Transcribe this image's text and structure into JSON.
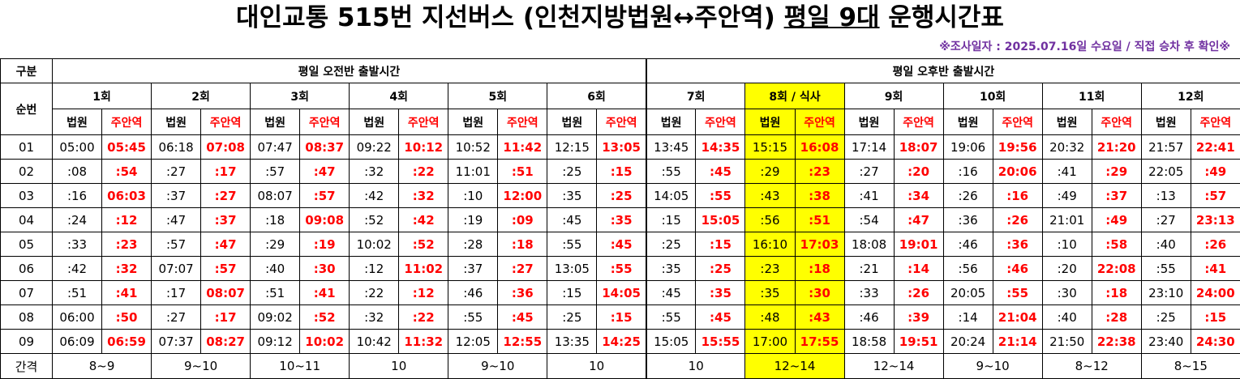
{
  "header": {
    "title_parts": [
      "대인교통 515번 지선버스 (인천지방법원↔주안역) ",
      "평일 9대",
      " 운행시간표"
    ],
    "subtitle": "※조사일자 : 2025.07.16일 수요일 / 직접 승차 후 확인※"
  },
  "table": {
    "corner_label": "구분",
    "seq_label": "순번",
    "groups": [
      "평일 오전반 출발시간",
      "평일 오후반 출발시간"
    ],
    "rounds": [
      "1회",
      "2회",
      "3회",
      "4회",
      "5회",
      "6회",
      "7회",
      "8회 / 식사",
      "9회",
      "10회",
      "11회",
      "12회"
    ],
    "directions": [
      "법원",
      "주안역"
    ],
    "highlight_round": 7,
    "highlight_color": "#ffff00",
    "arrival_color": "#ff0000",
    "rows": [
      {
        "seq": "01",
        "times": [
          "05:00",
          "05:45",
          "06:18",
          "07:08",
          "07:47",
          "08:37",
          "09:22",
          "10:12",
          "10:52",
          "11:42",
          "12:15",
          "13:05",
          "13:45",
          "14:35",
          "15:15",
          "16:08",
          "17:14",
          "18:07",
          "19:06",
          "19:56",
          "20:32",
          "21:20",
          "21:57",
          "22:41"
        ]
      },
      {
        "seq": "02",
        "times": [
          ":08",
          ":54",
          ":27",
          ":17",
          ":57",
          ":47",
          ":32",
          ":22",
          "11:01",
          ":51",
          ":25",
          ":15",
          ":55",
          ":45",
          ":29",
          ":23",
          ":27",
          ":20",
          ":16",
          "20:06",
          ":41",
          ":29",
          "22:05",
          ":49"
        ]
      },
      {
        "seq": "03",
        "times": [
          ":16",
          "06:03",
          ":37",
          ":27",
          "08:07",
          ":57",
          ":42",
          ":32",
          ":10",
          "12:00",
          ":35",
          ":25",
          "14:05",
          ":55",
          ":43",
          ":38",
          ":41",
          ":34",
          ":26",
          ":16",
          ":49",
          ":37",
          ":13",
          ":57"
        ]
      },
      {
        "seq": "04",
        "times": [
          ":24",
          ":12",
          ":47",
          ":37",
          ":18",
          "09:08",
          ":52",
          ":42",
          ":19",
          ":09",
          ":45",
          ":35",
          ":15",
          "15:05",
          ":56",
          ":51",
          ":54",
          ":47",
          ":36",
          ":26",
          "21:01",
          ":49",
          ":27",
          "23:13"
        ]
      },
      {
        "seq": "05",
        "times": [
          ":33",
          ":23",
          ":57",
          ":47",
          ":29",
          ":19",
          "10:02",
          ":52",
          ":28",
          ":18",
          ":55",
          ":45",
          ":25",
          ":15",
          "16:10",
          "17:03",
          "18:08",
          "19:01",
          ":46",
          ":36",
          ":10",
          ":58",
          ":40",
          ":26"
        ]
      },
      {
        "seq": "06",
        "times": [
          ":42",
          ":32",
          "07:07",
          ":57",
          ":40",
          ":30",
          ":12",
          "11:02",
          ":37",
          ":27",
          "13:05",
          ":55",
          ":35",
          ":25",
          ":23",
          ":18",
          ":21",
          ":14",
          ":56",
          ":46",
          ":20",
          "22:08",
          ":55",
          ":41"
        ]
      },
      {
        "seq": "07",
        "times": [
          ":51",
          ":41",
          ":17",
          "08:07",
          ":51",
          ":41",
          ":22",
          ":12",
          ":46",
          ":36",
          ":15",
          "14:05",
          ":45",
          ":35",
          ":35",
          ":30",
          ":33",
          ":26",
          "20:05",
          ":55",
          ":30",
          ":18",
          "23:10",
          "24:00"
        ]
      },
      {
        "seq": "08",
        "times": [
          "06:00",
          ":50",
          ":27",
          ":17",
          "09:02",
          ":52",
          ":32",
          ":22",
          ":55",
          ":45",
          ":25",
          ":15",
          ":55",
          ":45",
          ":48",
          ":43",
          ":46",
          ":39",
          ":14",
          "21:04",
          ":40",
          ":28",
          ":25",
          ":15"
        ]
      },
      {
        "seq": "09",
        "times": [
          "06:09",
          "06:59",
          "07:37",
          "08:27",
          "09:12",
          "10:02",
          "10:42",
          "11:32",
          "12:05",
          "12:55",
          "13:35",
          "14:25",
          "15:05",
          "15:55",
          "17:00",
          "17:55",
          "18:58",
          "19:51",
          "20:24",
          "21:14",
          "21:50",
          "22:38",
          "23:40",
          "24:30"
        ]
      }
    ],
    "footer": {
      "label": "간격",
      "intervals": [
        "8~9",
        "9~10",
        "10~11",
        "10",
        "9~10",
        "10",
        "10",
        "12~14",
        "12~14",
        "9~10",
        "8~12",
        "8~15"
      ]
    }
  }
}
